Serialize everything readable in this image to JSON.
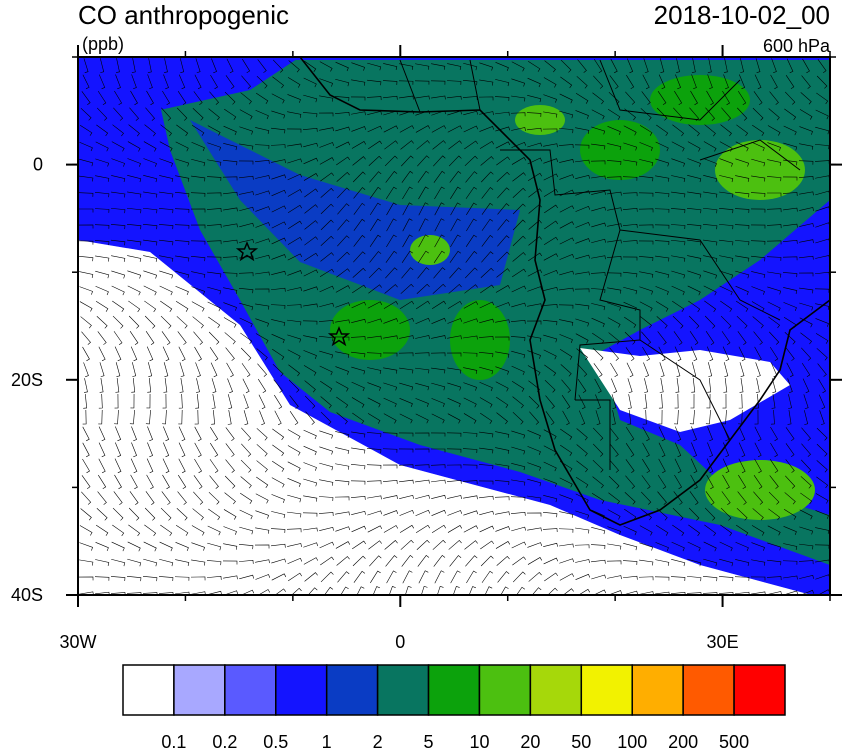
{
  "header": {
    "title": "CO anthropogenic",
    "units": "(ppb)",
    "time": "2018-10-02_00",
    "level": "600 hPa"
  },
  "axes": {
    "xlim": [
      -30,
      40
    ],
    "ylim": [
      -40,
      10
    ],
    "xticks": [
      {
        "value": -30,
        "label": "30W"
      },
      0,
      {
        "value": 30,
        "label": "30E"
      }
    ],
    "yticks": [
      0,
      {
        "value": -20,
        "label": "20S"
      },
      {
        "value": -40,
        "label": "40S"
      }
    ]
  },
  "colorbar": {
    "levels": [
      0.1,
      0.2,
      0.5,
      1,
      2,
      5,
      10,
      20,
      50,
      100,
      200,
      500
    ],
    "colors": [
      "#ffffff",
      "#a8a8ff",
      "#5a5aff",
      "#1414ff",
      "#0a3cc4",
      "#087560",
      "#0ca20c",
      "#4cc010",
      "#a6d80a",
      "#f2f200",
      "#ffae00",
      "#ff5a00",
      "#ff0000"
    ]
  }
}
